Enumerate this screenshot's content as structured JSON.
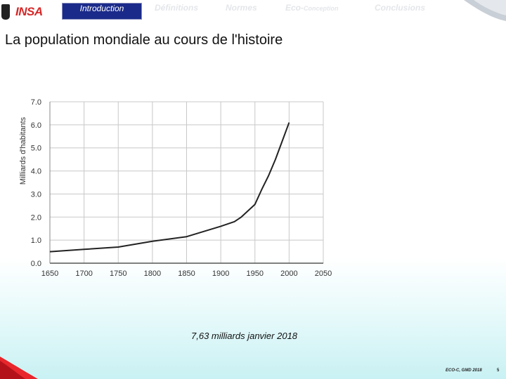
{
  "header": {
    "logo_text": "INSA",
    "tabs": [
      {
        "label": "Introduction",
        "active": true
      },
      {
        "label": "Définitions",
        "active": false
      },
      {
        "label": "Normes",
        "active": false
      },
      {
        "label": "Eco-",
        "label_small": "Conception",
        "active": false
      },
      {
        "label": "Conclusions",
        "active": false
      }
    ]
  },
  "slide": {
    "title": "La population mondiale au cours de l'histoire",
    "caption": "7,63 milliards  janvier 2018"
  },
  "footer": {
    "text": "ECO-C, GMD 2018",
    "page": "5"
  },
  "colors": {
    "nav_active_bg": "#1a2a8a",
    "logo_red": "#d62828",
    "accent_red": "#e8262b",
    "grid": "#c8c8c8",
    "line": "#222222"
  },
  "chart_data": {
    "type": "line",
    "title": "",
    "xlabel": "",
    "ylabel": "Milliards d'habitants",
    "xlim": [
      1650,
      2050
    ],
    "ylim": [
      0,
      7
    ],
    "x_ticks": [
      "1650",
      "1700",
      "1750",
      "1800",
      "1850",
      "1900",
      "1950",
      "2000",
      "2050"
    ],
    "y_ticks": [
      "0.0",
      "1.0",
      "2.0",
      "3.0",
      "4.0",
      "5.0",
      "6.0",
      "7.0"
    ],
    "grid": true,
    "series": [
      {
        "x": [
          1650,
          1700,
          1750,
          1800,
          1850,
          1900,
          1920,
          1930,
          1950,
          1960,
          1970,
          1980,
          1990,
          2000
        ],
        "y": [
          0.5,
          0.6,
          0.7,
          0.95,
          1.15,
          1.6,
          1.8,
          2.0,
          2.55,
          3.2,
          3.8,
          4.5,
          5.3,
          6.1
        ]
      }
    ]
  }
}
